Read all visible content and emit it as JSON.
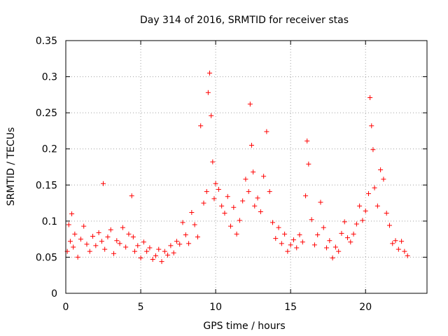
{
  "chart_data": {
    "type": "scatter",
    "title": "Day 314 of 2016, SRMTID for receiver stas",
    "xlabel": "GPS time / hours",
    "ylabel": "SRMTID / TECUs",
    "xlim": [
      0,
      24.1
    ],
    "ylim": [
      0,
      0.35
    ],
    "xticks": [
      0,
      5,
      10,
      15,
      20
    ],
    "xtick_labels": [
      "0",
      "5",
      "10",
      "15",
      "20"
    ],
    "yticks": [
      0,
      0.05,
      0.1,
      0.15,
      0.2,
      0.25,
      0.3,
      0.35
    ],
    "ytick_labels": [
      "0",
      "0.05",
      "0.1",
      "0.15",
      "0.2",
      "0.25",
      "0.3",
      "0.35"
    ],
    "grid": true,
    "marker": "+",
    "marker_color": "#ff0000",
    "series": [
      {
        "name": "SRMTID",
        "x": [
          0.1,
          0.2,
          0.3,
          0.4,
          0.5,
          0.6,
          0.8,
          1.0,
          1.2,
          1.4,
          1.6,
          1.8,
          2.0,
          2.2,
          2.4,
          2.5,
          2.6,
          2.8,
          3.0,
          3.2,
          3.4,
          3.6,
          3.8,
          4.0,
          4.2,
          4.4,
          4.5,
          4.6,
          4.8,
          5.0,
          5.2,
          5.4,
          5.6,
          5.8,
          6.0,
          6.2,
          6.4,
          6.6,
          6.8,
          7.0,
          7.2,
          7.4,
          7.6,
          7.8,
          8.0,
          8.2,
          8.4,
          8.6,
          8.8,
          9.0,
          9.2,
          9.4,
          9.5,
          9.6,
          9.7,
          9.8,
          9.9,
          10.0,
          10.2,
          10.4,
          10.6,
          10.8,
          11.0,
          11.2,
          11.4,
          11.6,
          11.8,
          12.0,
          12.2,
          12.3,
          12.4,
          12.5,
          12.6,
          12.8,
          13.0,
          13.2,
          13.4,
          13.6,
          13.8,
          14.0,
          14.2,
          14.4,
          14.6,
          14.8,
          15.0,
          15.2,
          15.4,
          15.6,
          15.8,
          16.0,
          16.1,
          16.2,
          16.4,
          16.6,
          16.8,
          17.0,
          17.2,
          17.4,
          17.6,
          17.8,
          18.0,
          18.2,
          18.4,
          18.6,
          18.8,
          19.0,
          19.2,
          19.4,
          19.6,
          19.8,
          20.0,
          20.2,
          20.3,
          20.4,
          20.5,
          20.6,
          20.8,
          21.0,
          21.2,
          21.4,
          21.6,
          21.8,
          22.0,
          22.2,
          22.4,
          22.6,
          22.8
        ],
        "y": [
          0.058,
          0.095,
          0.072,
          0.11,
          0.064,
          0.082,
          0.05,
          0.075,
          0.093,
          0.068,
          0.058,
          0.079,
          0.066,
          0.084,
          0.072,
          0.152,
          0.061,
          0.078,
          0.088,
          0.055,
          0.073,
          0.069,
          0.091,
          0.064,
          0.082,
          0.135,
          0.078,
          0.058,
          0.066,
          0.049,
          0.071,
          0.058,
          0.063,
          0.047,
          0.052,
          0.061,
          0.044,
          0.058,
          0.053,
          0.066,
          0.056,
          0.072,
          0.068,
          0.098,
          0.081,
          0.069,
          0.112,
          0.095,
          0.078,
          0.232,
          0.125,
          0.141,
          0.278,
          0.305,
          0.246,
          0.182,
          0.131,
          0.152,
          0.144,
          0.121,
          0.111,
          0.134,
          0.093,
          0.119,
          0.082,
          0.101,
          0.128,
          0.158,
          0.141,
          0.262,
          0.205,
          0.168,
          0.121,
          0.132,
          0.113,
          0.162,
          0.224,
          0.141,
          0.098,
          0.076,
          0.091,
          0.069,
          0.082,
          0.058,
          0.067,
          0.074,
          0.063,
          0.081,
          0.071,
          0.135,
          0.211,
          0.179,
          0.102,
          0.067,
          0.081,
          0.126,
          0.091,
          0.063,
          0.073,
          0.049,
          0.064,
          0.058,
          0.083,
          0.099,
          0.077,
          0.071,
          0.082,
          0.096,
          0.121,
          0.101,
          0.114,
          0.138,
          0.271,
          0.232,
          0.199,
          0.146,
          0.121,
          0.171,
          0.158,
          0.111,
          0.094,
          0.069,
          0.073,
          0.061,
          0.072,
          0.058,
          0.052
        ]
      }
    ]
  }
}
